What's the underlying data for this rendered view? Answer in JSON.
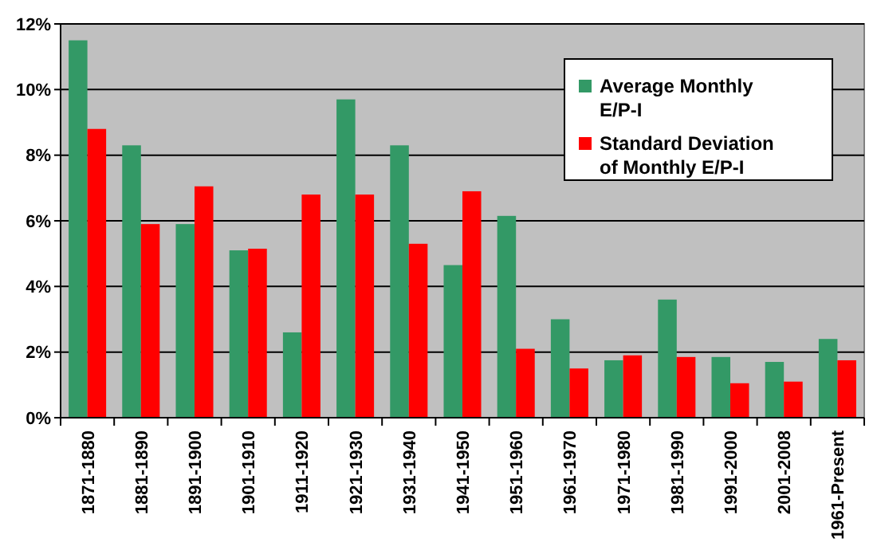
{
  "chart_data": {
    "type": "bar",
    "categories": [
      "1871-1880",
      "1881-1890",
      "1891-1900",
      "1901-1910",
      "1911-1920",
      "1921-1930",
      "1931-1940",
      "1941-1950",
      "1951-1960",
      "1961-1970",
      "1971-1980",
      "1981-1990",
      "1991-2000",
      "2001-2008",
      "1961-Present"
    ],
    "series": [
      {
        "name": "Average Monthly E/P-I",
        "color": "#339966",
        "values": [
          11.5,
          8.3,
          5.9,
          5.1,
          2.6,
          9.7,
          8.3,
          4.65,
          6.15,
          3.0,
          1.75,
          3.6,
          1.85,
          1.7,
          2.4
        ]
      },
      {
        "name": "Standard Deviation of Monthly E/P-I",
        "color": "#ff0000",
        "values": [
          8.8,
          5.9,
          7.05,
          5.15,
          6.8,
          6.8,
          5.3,
          6.9,
          2.1,
          1.5,
          1.9,
          1.85,
          1.05,
          1.1,
          1.75
        ]
      }
    ],
    "ylim": [
      0,
      12
    ],
    "yticks": [
      {
        "value": 0,
        "label": "0%"
      },
      {
        "value": 2,
        "label": "2%"
      },
      {
        "value": 4,
        "label": "4%"
      },
      {
        "value": 6,
        "label": "6%"
      },
      {
        "value": 8,
        "label": "8%"
      },
      {
        "value": 10,
        "label": "10%"
      },
      {
        "value": 12,
        "label": "12%"
      }
    ],
    "grid": "y",
    "legend": "top right"
  }
}
